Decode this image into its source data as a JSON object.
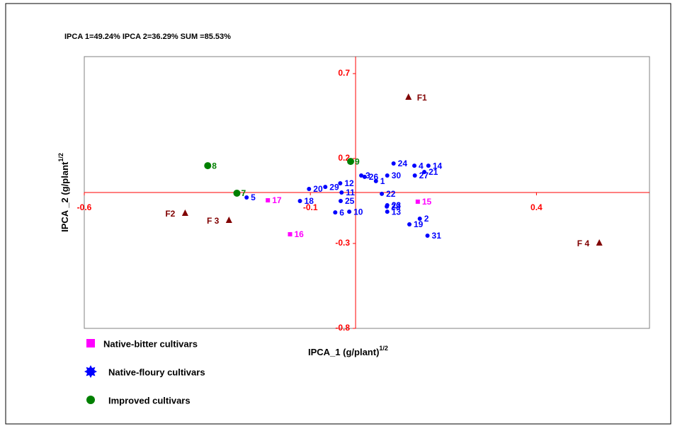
{
  "chart_data": {
    "type": "scatter",
    "subtitle": "IPCA 1=49.24%  IPCA 2=36.29% SUM =85.53%",
    "x_label": "IPCA_1 (g/plant)",
    "x_label_sup": "1/2",
    "y_label": "IPCA _2 (g/plant",
    "y_label_sup": "1/2",
    "xlim": [
      -0.6,
      0.65
    ],
    "ylim": [
      -0.8,
      0.8
    ],
    "xticks": [
      -0.6,
      -0.1,
      0.4
    ],
    "yticks": [
      0.7,
      0.2,
      -0.3,
      -0.8
    ],
    "legend": "bottom-left",
    "series": [
      {
        "name": "Native-bitter cultivars",
        "color": "#ff00ff",
        "marker": "square",
        "labels": [
          "17",
          "16",
          "15"
        ],
        "x": [
          -0.194,
          -0.145,
          0.1375
        ],
        "values": [
          -0.046,
          -0.246,
          -0.054
        ]
      },
      {
        "name": "Native-floury cultivars",
        "color": "#0000ff",
        "marker": "star",
        "labels": [
          "24",
          "4",
          "14",
          "21",
          "30",
          "27",
          "3",
          "26",
          "1",
          "12",
          "29",
          "20",
          "11",
          "22",
          "5",
          "18",
          "23",
          "28",
          "25",
          "6",
          "10",
          "13",
          "19",
          "2",
          "31"
        ],
        "x": [
          0.084,
          0.13,
          0.161,
          0.152,
          0.07,
          0.131,
          0.0125,
          0.02,
          0.045,
          -0.034,
          -0.067,
          -0.103,
          -0.031,
          0.058,
          -0.241,
          -0.123,
          0.07,
          0.069,
          -0.033,
          -0.045,
          -0.014,
          0.07,
          0.119,
          0.142,
          0.159
        ],
        "values": [
          0.171,
          0.158,
          0.158,
          0.121,
          0.1,
          0.1,
          0.1,
          0.092,
          0.067,
          0.054,
          0.033,
          0.021,
          0,
          -0.008,
          -0.029,
          -0.05,
          -0.075,
          -0.083,
          -0.05,
          -0.117,
          -0.113,
          -0.113,
          -0.1875,
          -0.154,
          -0.254
        ]
      },
      {
        "name": "Improved cultivars",
        "color": "#008000",
        "marker": "circle",
        "labels": [
          "8",
          "7",
          "9"
        ],
        "x": [
          -0.327,
          -0.2625,
          -0.011
        ],
        "values": [
          0.158,
          -0.004,
          0.183
        ]
      }
    ],
    "factors": {
      "color": "#800000",
      "labels": [
        "F1",
        "F2",
        "F 3",
        "F 4"
      ],
      "x": [
        0.117,
        -0.377,
        -0.28,
        0.539
      ],
      "values": [
        0.5625,
        -0.121,
        -0.1625,
        -0.296
      ]
    }
  }
}
